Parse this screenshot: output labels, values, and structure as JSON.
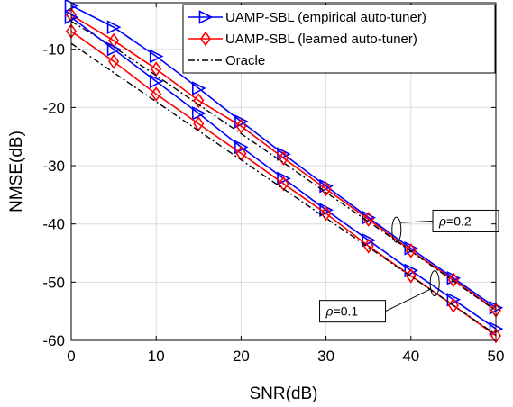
{
  "chart_data": {
    "type": "line",
    "xlabel": "SNR(dB)",
    "ylabel": "NMSE(dB)",
    "xlim": [
      0,
      50
    ],
    "ylim": [
      -60,
      -2
    ],
    "xticks": [
      0,
      10,
      20,
      30,
      40,
      50
    ],
    "yticks": [
      -10,
      -20,
      -30,
      -40,
      -50,
      -60
    ],
    "grid": true,
    "legend_position": "top-right",
    "legend": [
      {
        "label": "UAMP-SBL (empirical auto-tuner)",
        "color": "#0000ff",
        "marker": "triangle-right",
        "dash": "solid"
      },
      {
        "label": "UAMP-SBL (learned auto-tuner)",
        "color": "#ff0000",
        "marker": "diamond",
        "dash": "solid"
      },
      {
        "label": "Oracle",
        "color": "#000000",
        "marker": "none",
        "dash": "dashdot"
      }
    ],
    "annotations": [
      {
        "rho_symbol": "ρ",
        "text": "=0.2",
        "x": 46.5,
        "y": -39.5
      },
      {
        "rho_symbol": "ρ",
        "text": "=0.1",
        "x": 37.0,
        "y": -55.0
      }
    ],
    "x": [
      0,
      5,
      10,
      15,
      20,
      25,
      30,
      35,
      40,
      45,
      50
    ],
    "series": [
      {
        "group": "rho=0.2",
        "style": "empirical",
        "color": "#0000ff",
        "marker": "triangle-right",
        "values": [
          -2.5,
          -6.2,
          -11.2,
          -16.7,
          -22.4,
          -28.0,
          -33.5,
          -38.9,
          -44.2,
          -49.3,
          -54.4
        ]
      },
      {
        "group": "rho=0.2",
        "style": "learned",
        "color": "#ff0000",
        "marker": "diamond",
        "values": [
          -4.1,
          -8.5,
          -13.4,
          -18.8,
          -23.2,
          -28.7,
          -34.0,
          -39.2,
          -44.6,
          -49.6,
          -54.8
        ]
      },
      {
        "group": "rho=0.2",
        "style": "oracle",
        "color": "#000000",
        "marker": "none",
        "values": [
          -5.2,
          -9.6,
          -14.5,
          -19.5,
          -24.5,
          -29.5,
          -34.6,
          -39.6,
          -44.7,
          -49.8,
          -54.9
        ]
      },
      {
        "group": "rho=0.1",
        "style": "empirical",
        "color": "#0000ff",
        "marker": "triangle-right",
        "values": [
          -4.5,
          -10.0,
          -15.5,
          -21.0,
          -26.8,
          -32.2,
          -37.6,
          -42.8,
          -48.0,
          -53.0,
          -58.0
        ]
      },
      {
        "group": "rho=0.1",
        "style": "learned",
        "color": "#ff0000",
        "marker": "diamond",
        "values": [
          -6.9,
          -12.1,
          -17.7,
          -22.8,
          -27.9,
          -33.1,
          -38.2,
          -43.8,
          -48.9,
          -54.0,
          -59.2
        ]
      },
      {
        "group": "rho=0.1",
        "style": "oracle",
        "color": "#000000",
        "marker": "none",
        "values": [
          -9.0,
          -14.0,
          -19.0,
          -24.0,
          -29.0,
          -34.0,
          -39.0,
          -44.0,
          -49.0,
          -54.0,
          -59.0
        ]
      }
    ]
  }
}
